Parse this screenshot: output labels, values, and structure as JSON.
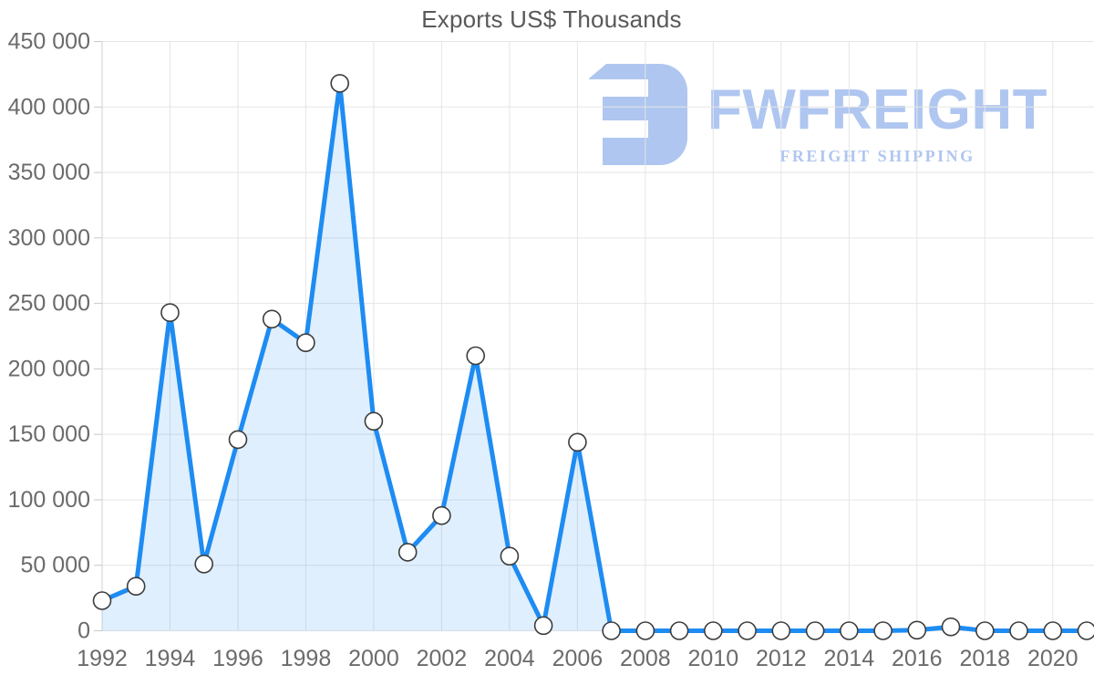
{
  "page": {
    "title": "Exports US$ Thousands"
  },
  "logo": {
    "brand": "FWFREIGHT",
    "tagline": "FREIGHT SHIPPING",
    "color": "#a9c2ef"
  },
  "chart_data": {
    "type": "area",
    "title": "Exports US$ Thousands",
    "xlabel": "",
    "ylabel": "",
    "x": [
      1992,
      1993,
      1994,
      1995,
      1996,
      1997,
      1998,
      1999,
      2000,
      2001,
      2002,
      2003,
      2004,
      2005,
      2006,
      2007,
      2008,
      2009,
      2010,
      2011,
      2012,
      2013,
      2014,
      2015,
      2016,
      2017,
      2018,
      2019,
      2020,
      2021
    ],
    "values": [
      23000,
      34000,
      243000,
      51000,
      146000,
      238000,
      220000,
      418000,
      160000,
      60000,
      88000,
      210000,
      57000,
      4000,
      144000,
      0,
      0,
      0,
      0,
      0,
      0,
      0,
      0,
      0,
      500,
      3000,
      0,
      0,
      0,
      0
    ],
    "ylim": [
      0,
      450000
    ],
    "ytick_step": 50000,
    "ytick_labels": [
      "0",
      "50 000",
      "100 000",
      "150 000",
      "200 000",
      "250 000",
      "300 000",
      "350 000",
      "400 000",
      "450 000"
    ],
    "xtick_labels": [
      "1992",
      "1994",
      "1996",
      "1998",
      "2000",
      "2002",
      "2004",
      "2006",
      "2008",
      "2010",
      "2012",
      "2014",
      "2016",
      "2018",
      "2020"
    ],
    "grid": true,
    "legend": "none",
    "line_color": "#1e8cf2",
    "fill_color": "rgba(30,140,242,0.14)",
    "grid_color": "#e5e5e5",
    "axis_color": "#d2d2d2",
    "tick_color": "#c8c8c8",
    "axis_text_color": "#6b6b6b",
    "marker_fill": "#ffffff",
    "marker_stroke": "#3c3c3c"
  }
}
